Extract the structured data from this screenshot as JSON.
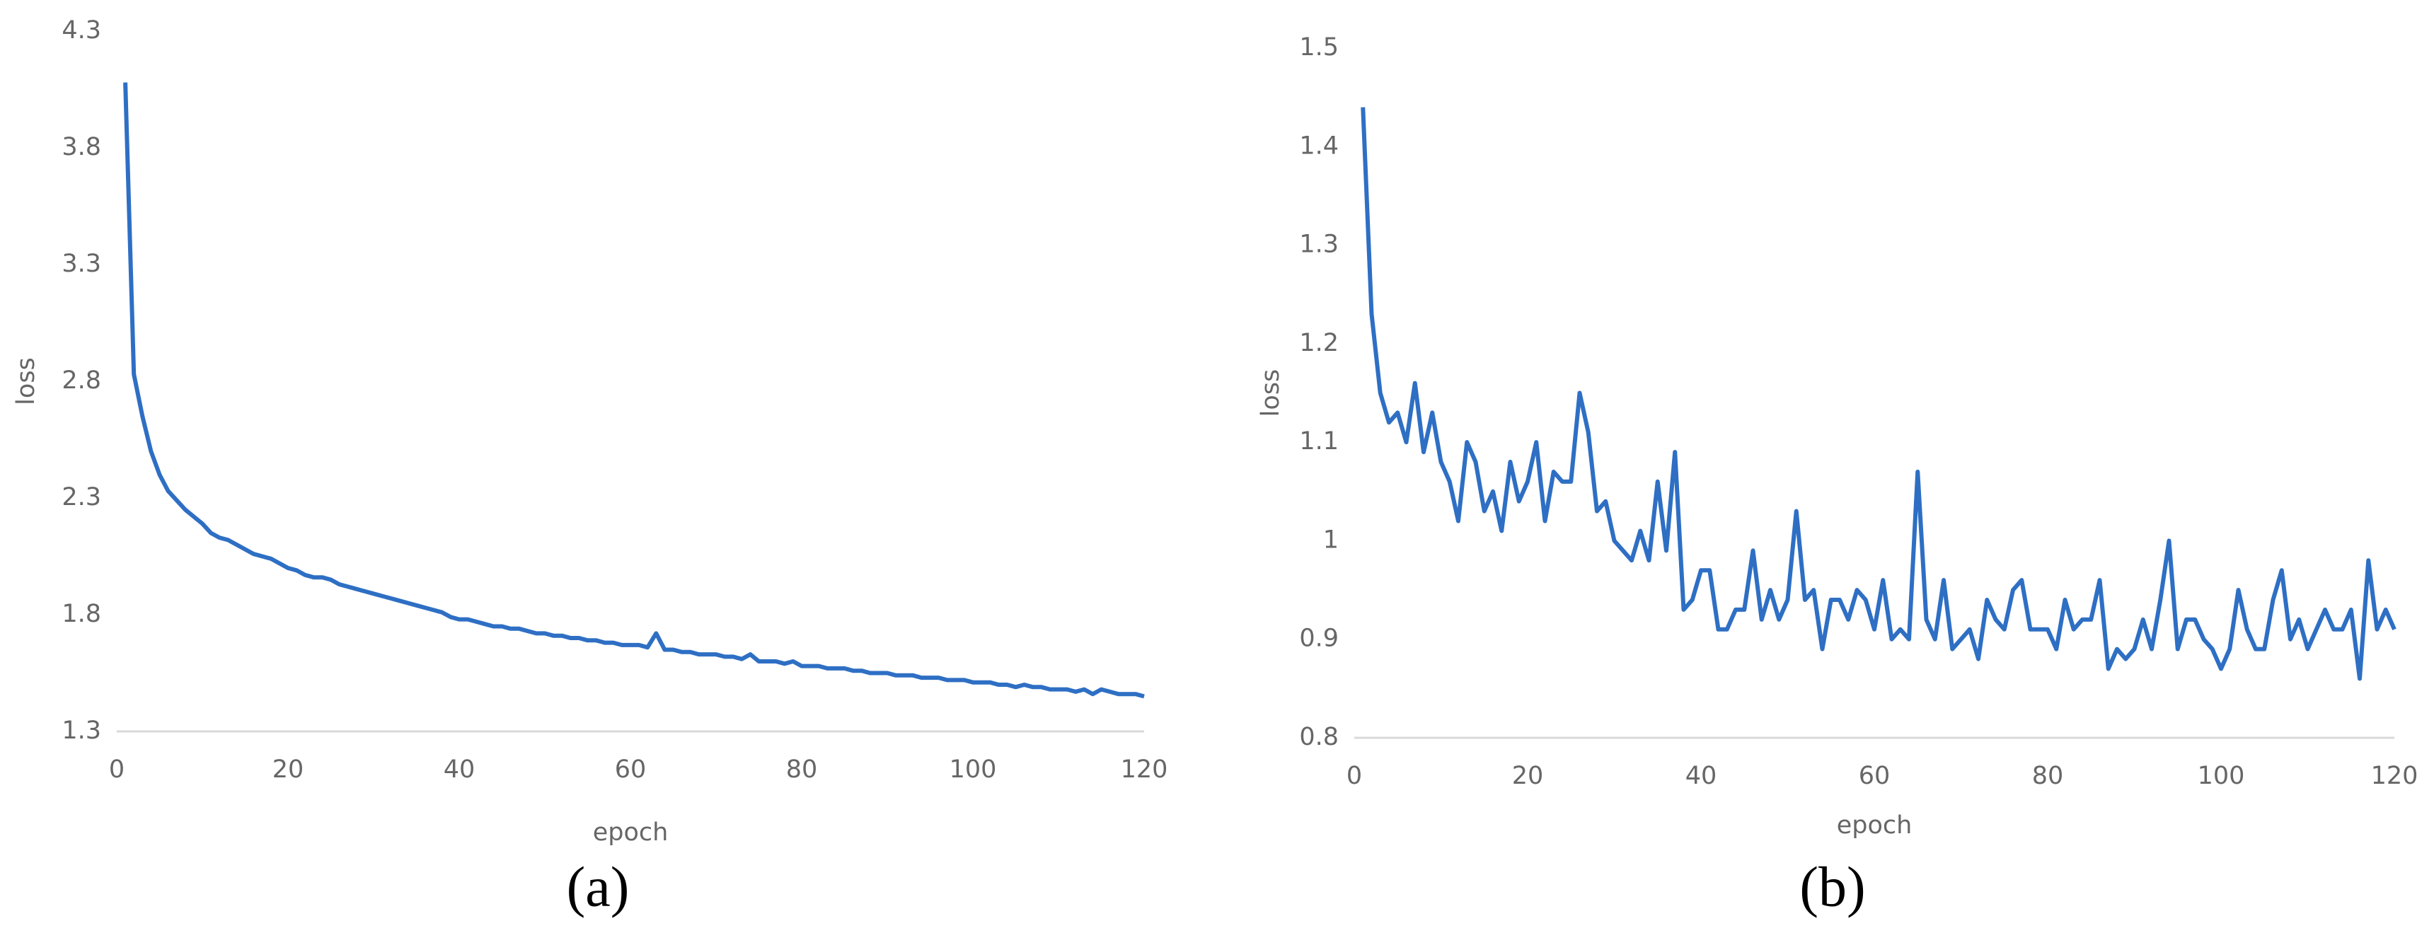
{
  "chart_data": [
    {
      "type": "line",
      "caption": "(a)",
      "xlabel": "epoch",
      "ylabel": "loss",
      "xlim": [
        0,
        120
      ],
      "xticks": [
        0,
        20,
        40,
        60,
        80,
        100,
        120
      ],
      "ylim": [
        1.3,
        4.3
      ],
      "yticks": [
        1.3,
        1.8,
        2.3,
        2.8,
        3.3,
        3.8,
        4.3
      ],
      "x": [
        1,
        2,
        3,
        4,
        5,
        6,
        7,
        8,
        9,
        10,
        11,
        12,
        13,
        14,
        15,
        16,
        17,
        18,
        19,
        20,
        21,
        22,
        23,
        24,
        25,
        26,
        27,
        28,
        29,
        30,
        31,
        32,
        33,
        34,
        35,
        36,
        37,
        38,
        39,
        40,
        41,
        42,
        43,
        44,
        45,
        46,
        47,
        48,
        49,
        50,
        51,
        52,
        53,
        54,
        55,
        56,
        57,
        58,
        59,
        60,
        61,
        62,
        63,
        64,
        65,
        66,
        67,
        68,
        69,
        70,
        71,
        72,
        73,
        74,
        75,
        76,
        77,
        78,
        79,
        80,
        81,
        82,
        83,
        84,
        85,
        86,
        87,
        88,
        89,
        90,
        91,
        92,
        93,
        94,
        95,
        96,
        97,
        98,
        99,
        100,
        101,
        102,
        103,
        104,
        105,
        106,
        107,
        108,
        109,
        110,
        111,
        112,
        113,
        114,
        115,
        116,
        117,
        118,
        119,
        120
      ],
      "series": [
        {
          "color": "#2e6fc4",
          "values": [
            4.08,
            2.83,
            2.65,
            2.5,
            2.4,
            2.33,
            2.29,
            2.25,
            2.22,
            2.19,
            2.15,
            2.13,
            2.12,
            2.1,
            2.08,
            2.06,
            2.05,
            2.04,
            2.02,
            2.0,
            1.99,
            1.97,
            1.96,
            1.96,
            1.95,
            1.93,
            1.92,
            1.91,
            1.9,
            1.89,
            1.88,
            1.87,
            1.86,
            1.85,
            1.84,
            1.83,
            1.82,
            1.81,
            1.79,
            1.78,
            1.78,
            1.77,
            1.76,
            1.75,
            1.75,
            1.74,
            1.74,
            1.73,
            1.72,
            1.72,
            1.71,
            1.71,
            1.7,
            1.7,
            1.69,
            1.69,
            1.68,
            1.68,
            1.67,
            1.67,
            1.67,
            1.66,
            1.72,
            1.65,
            1.65,
            1.64,
            1.64,
            1.63,
            1.63,
            1.63,
            1.62,
            1.62,
            1.61,
            1.63,
            1.6,
            1.6,
            1.6,
            1.59,
            1.6,
            1.58,
            1.58,
            1.58,
            1.57,
            1.57,
            1.57,
            1.56,
            1.56,
            1.55,
            1.55,
            1.55,
            1.54,
            1.54,
            1.54,
            1.53,
            1.53,
            1.53,
            1.52,
            1.52,
            1.52,
            1.51,
            1.51,
            1.51,
            1.5,
            1.5,
            1.49,
            1.5,
            1.49,
            1.49,
            1.48,
            1.48,
            1.48,
            1.47,
            1.48,
            1.46,
            1.48,
            1.47,
            1.46,
            1.46,
            1.46,
            1.45
          ]
        }
      ]
    },
    {
      "type": "line",
      "caption": "(b)",
      "xlabel": "epoch",
      "ylabel": "loss",
      "xlim": [
        0,
        120
      ],
      "xticks": [
        0,
        20,
        40,
        60,
        80,
        100,
        120
      ],
      "ylim": [
        0.8,
        1.5
      ],
      "yticks": [
        0.8,
        0.9,
        1,
        1.1,
        1.2,
        1.3,
        1.4,
        1.5
      ],
      "x": [
        1,
        2,
        3,
        4,
        5,
        6,
        7,
        8,
        9,
        10,
        11,
        12,
        13,
        14,
        15,
        16,
        17,
        18,
        19,
        20,
        21,
        22,
        23,
        24,
        25,
        26,
        27,
        28,
        29,
        30,
        31,
        32,
        33,
        34,
        35,
        36,
        37,
        38,
        39,
        40,
        41,
        42,
        43,
        44,
        45,
        46,
        47,
        48,
        49,
        50,
        51,
        52,
        53,
        54,
        55,
        56,
        57,
        58,
        59,
        60,
        61,
        62,
        63,
        64,
        65,
        66,
        67,
        68,
        69,
        70,
        71,
        72,
        73,
        74,
        75,
        76,
        77,
        78,
        79,
        80,
        81,
        82,
        83,
        84,
        85,
        86,
        87,
        88,
        89,
        90,
        91,
        92,
        93,
        94,
        95,
        96,
        97,
        98,
        99,
        100,
        101,
        102,
        103,
        104,
        105,
        106,
        107,
        108,
        109,
        110,
        111,
        112,
        113,
        114,
        115,
        116,
        117,
        118,
        119,
        120
      ],
      "series": [
        {
          "color": "#2e6fc4",
          "values": [
            1.44,
            1.23,
            1.15,
            1.12,
            1.13,
            1.1,
            1.16,
            1.09,
            1.13,
            1.08,
            1.06,
            1.02,
            1.1,
            1.08,
            1.03,
            1.05,
            1.01,
            1.08,
            1.04,
            1.06,
            1.1,
            1.02,
            1.07,
            1.06,
            1.06,
            1.15,
            1.11,
            1.03,
            1.04,
            1.0,
            0.99,
            0.98,
            1.01,
            0.98,
            1.06,
            0.99,
            1.09,
            0.93,
            0.94,
            0.97,
            0.97,
            0.91,
            0.91,
            0.93,
            0.93,
            0.99,
            0.92,
            0.95,
            0.92,
            0.94,
            1.03,
            0.94,
            0.95,
            0.89,
            0.94,
            0.94,
            0.92,
            0.95,
            0.94,
            0.91,
            0.96,
            0.9,
            0.91,
            0.9,
            1.07,
            0.92,
            0.9,
            0.96,
            0.89,
            0.9,
            0.91,
            0.88,
            0.94,
            0.92,
            0.91,
            0.95,
            0.96,
            0.91,
            0.91,
            0.91,
            0.89,
            0.94,
            0.91,
            0.92,
            0.92,
            0.96,
            0.87,
            0.89,
            0.88,
            0.89,
            0.92,
            0.89,
            0.94,
            1.0,
            0.89,
            0.92,
            0.92,
            0.9,
            0.89,
            0.87,
            0.89,
            0.95,
            0.91,
            0.89,
            0.89,
            0.94,
            0.97,
            0.9,
            0.92,
            0.89,
            0.91,
            0.93,
            0.91,
            0.91,
            0.93,
            0.86,
            0.98,
            0.91,
            0.93,
            0.91
          ]
        }
      ]
    }
  ]
}
